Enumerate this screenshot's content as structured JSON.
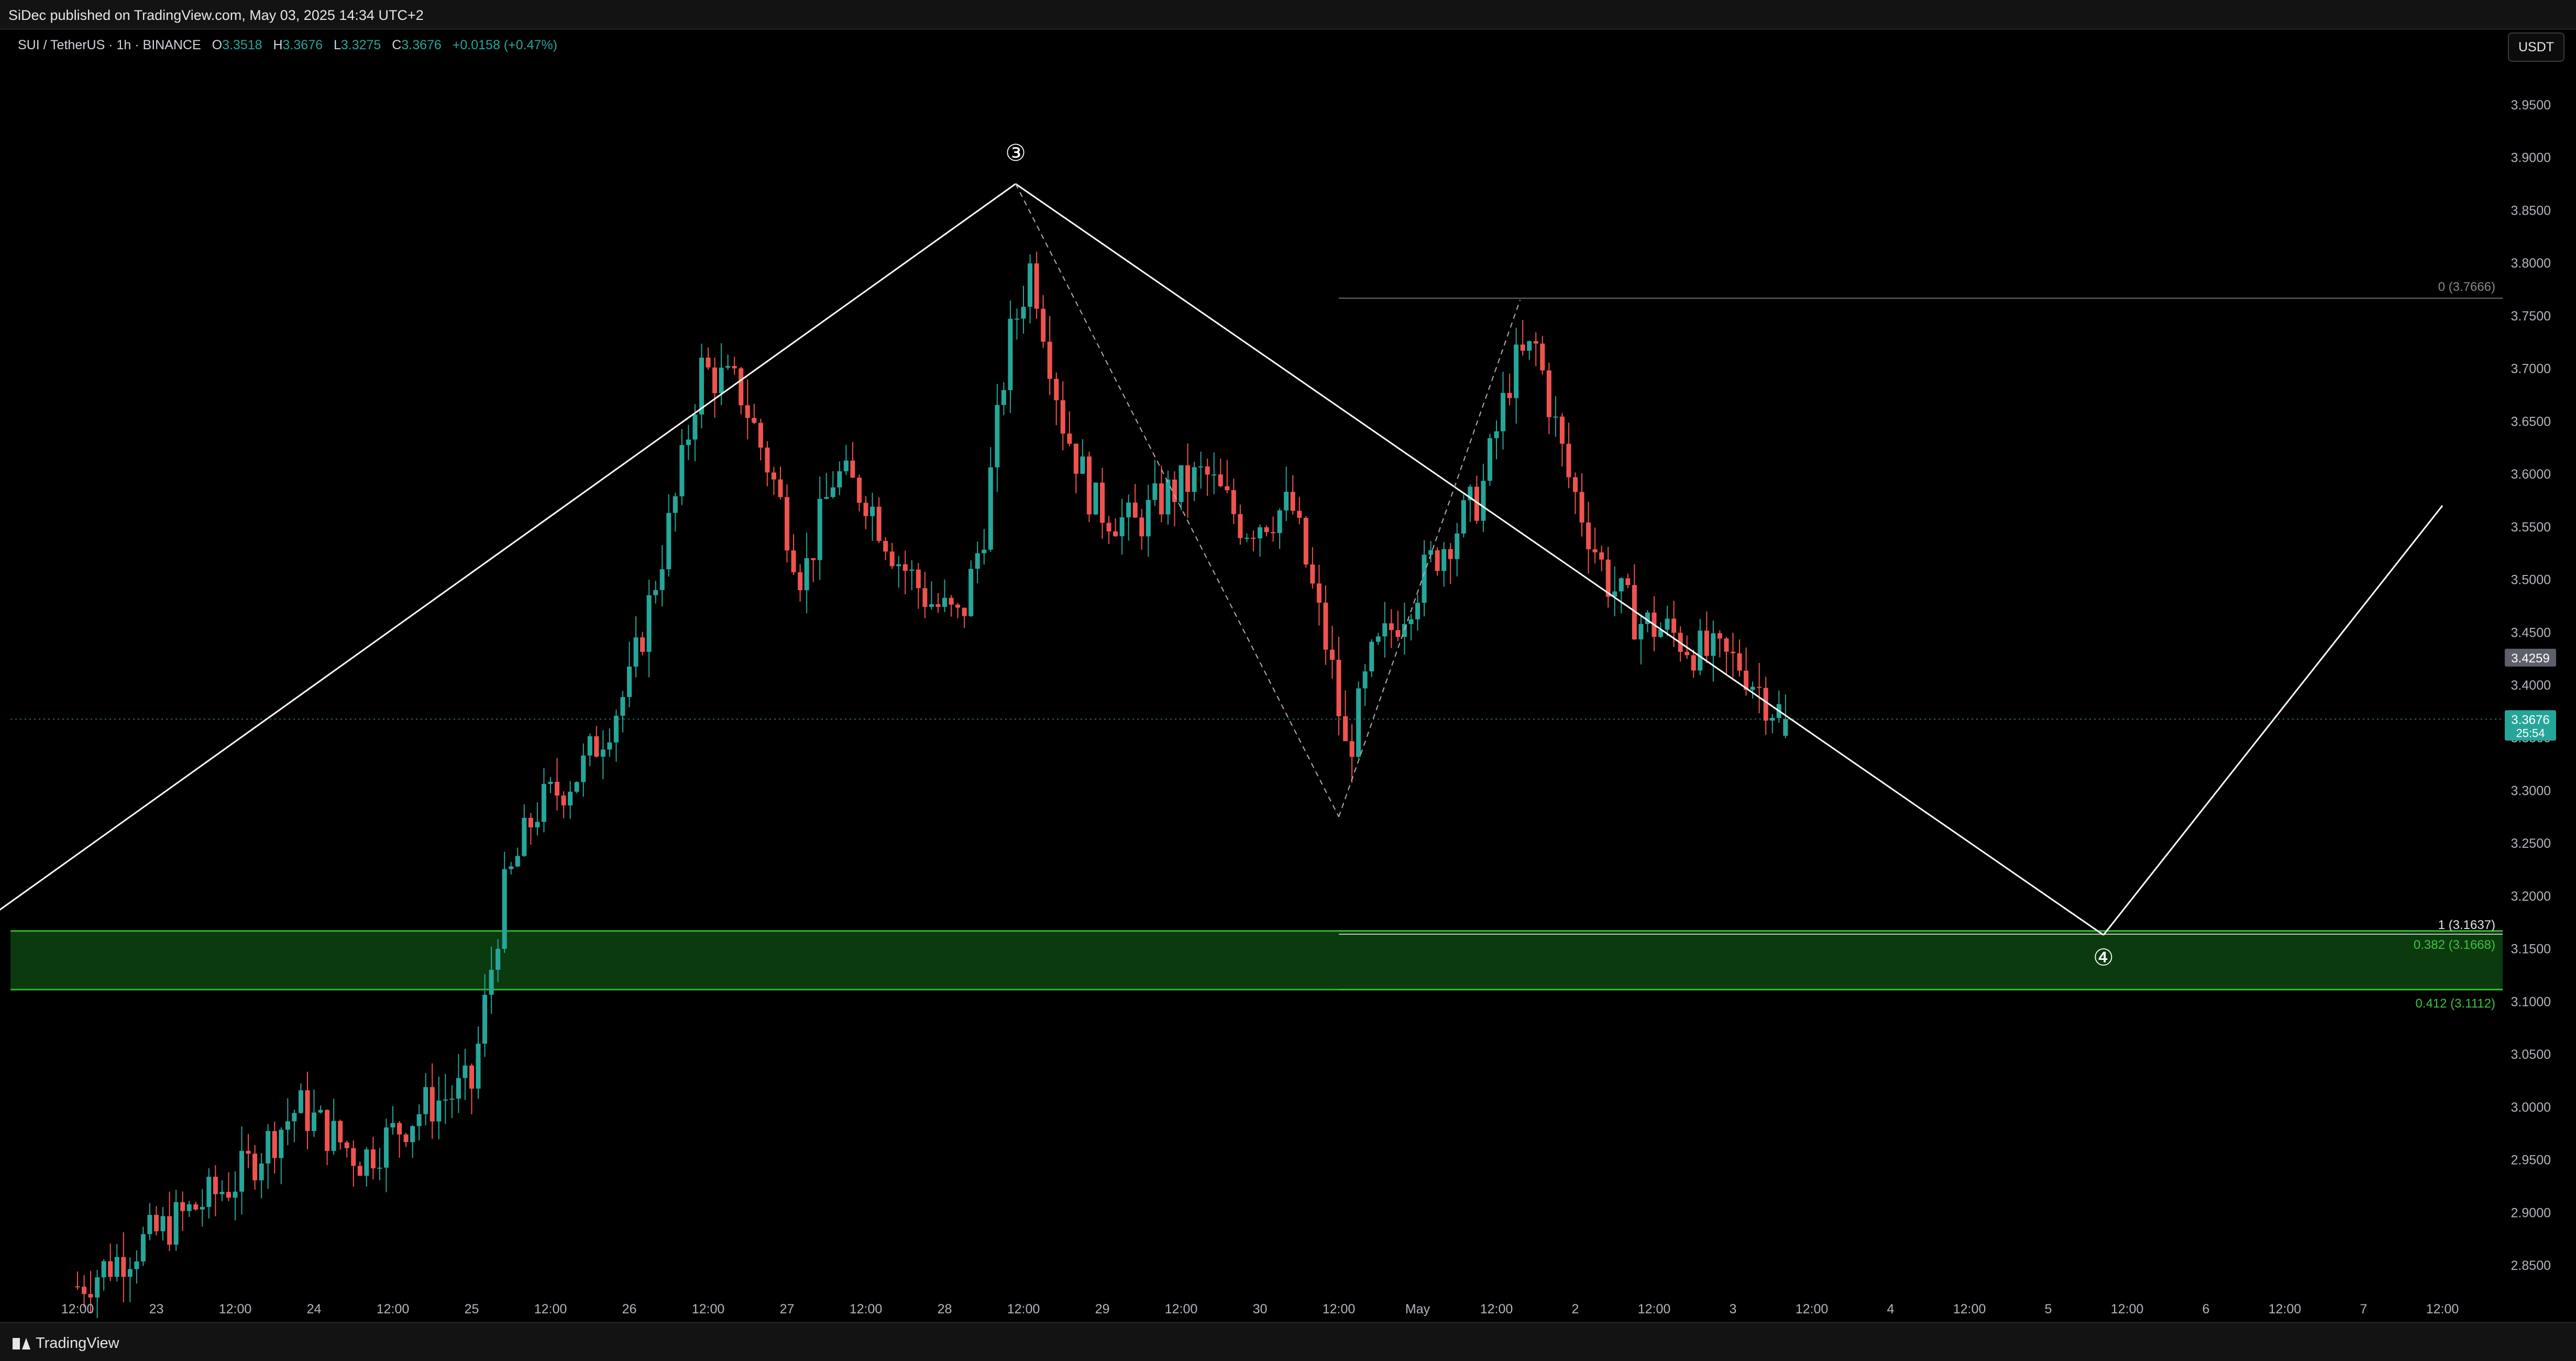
{
  "header": {
    "published": "SiDec published on TradingView.com, May 03, 2025 14:34 UTC+2"
  },
  "legend": {
    "symbol": "SUI / TetherUS · 1h · BINANCE",
    "open_label": "O",
    "open": "3.3518",
    "high_label": "H",
    "high": "3.3676",
    "low_label": "L",
    "low": "3.3275",
    "close_label": "C",
    "close": "3.3676",
    "change": "+0.0158 (+0.47%)"
  },
  "currency": "USDT",
  "footer": {
    "brand": "TradingView"
  },
  "colors": {
    "up": "#26a69a",
    "down": "#ef5350",
    "zone_fill": "#0b3a0e",
    "zone_line": "#2db52d",
    "line": "#ffffff"
  },
  "chart_data": {
    "type": "candlestick",
    "ylim": [
      2.81,
      4.0
    ],
    "y_ticks": [
      "3.9500",
      "3.9000",
      "3.8500",
      "3.8000",
      "3.7500",
      "3.7000",
      "3.6500",
      "3.6000",
      "3.5500",
      "3.5000",
      "3.4500",
      "3.4000",
      "3.3500",
      "3.3000",
      "3.2500",
      "3.2000",
      "3.1500",
      "3.1000",
      "3.0500",
      "3.0000",
      "2.9500",
      "2.9000",
      "2.8500"
    ],
    "x_ticks": [
      "12:00",
      "23",
      "12:00",
      "24",
      "12:00",
      "25",
      "12:00",
      "26",
      "12:00",
      "27",
      "12:00",
      "28",
      "12:00",
      "29",
      "12:00",
      "30",
      "12:00",
      "May",
      "12:00",
      "2",
      "12:00",
      "3",
      "12:00",
      "4",
      "12:00",
      "5",
      "12:00",
      "6",
      "12:00",
      "7",
      "12:00"
    ],
    "price_labels": [
      {
        "value": 3.4259,
        "text": "3.4259",
        "color": "#5d606b"
      },
      {
        "value": 3.3676,
        "text": "3.3676",
        "sub": "25:54",
        "color": "#26a69a"
      }
    ],
    "fib_levels": [
      {
        "value": 3.7666,
        "label": "0 (3.7666)",
        "color": "#8a8a8a"
      },
      {
        "value": 3.1637,
        "label": "1 (3.1637)",
        "color": "#e6e6e6"
      },
      {
        "value": 3.1668,
        "label": "0.382 (3.1668)",
        "color": "#3ec43e"
      },
      {
        "value": 3.1112,
        "label": "0.412 (3.1112)",
        "color": "#3ec43e"
      }
    ],
    "zone": {
      "top": 3.1668,
      "bottom": 3.1112
    },
    "wave_labels": [
      "③",
      "④"
    ],
    "wave_points": [
      {
        "t": -3.6,
        "p": 2.855
      },
      {
        "t": 5.95,
        "p": 3.875
      },
      {
        "t": 12.85,
        "p": 3.163
      }
    ],
    "projection": [
      {
        "t": 12.85,
        "p": 3.163
      },
      {
        "t": 15.0,
        "p": 3.57
      }
    ],
    "dashed_fib": [
      {
        "t": 5.95,
        "p": 3.875
      },
      {
        "t": 8.0,
        "p": 3.275
      },
      {
        "t": 9.15,
        "p": 3.765
      }
    ],
    "candles_anchor": [
      [
        0,
        2.83
      ],
      [
        0.5,
        2.88
      ],
      [
        1.0,
        2.93
      ],
      [
        1.4,
        3.0
      ],
      [
        1.8,
        2.95
      ],
      [
        2.2,
        3.0
      ],
      [
        2.5,
        3.02
      ],
      [
        2.7,
        3.2
      ],
      [
        2.9,
        3.28
      ],
      [
        3.2,
        3.32
      ],
      [
        3.5,
        3.4
      ],
      [
        3.8,
        3.58
      ],
      [
        3.95,
        3.7
      ],
      [
        4.2,
        3.68
      ],
      [
        4.4,
        3.6
      ],
      [
        4.6,
        3.5
      ],
      [
        4.8,
        3.6
      ],
      [
        5.0,
        3.58
      ],
      [
        5.2,
        3.52
      ],
      [
        5.4,
        3.48
      ],
      [
        5.6,
        3.46
      ],
      [
        5.75,
        3.55
      ],
      [
        5.9,
        3.72
      ],
      [
        6.05,
        3.8
      ],
      [
        6.25,
        3.65
      ],
      [
        6.45,
        3.57
      ],
      [
        6.7,
        3.55
      ],
      [
        6.9,
        3.58
      ],
      [
        7.15,
        3.6
      ],
      [
        7.4,
        3.55
      ],
      [
        7.7,
        3.57
      ],
      [
        7.95,
        3.42
      ],
      [
        8.05,
        3.33
      ],
      [
        8.2,
        3.42
      ],
      [
        8.4,
        3.47
      ],
      [
        8.6,
        3.52
      ],
      [
        8.9,
        3.58
      ],
      [
        9.1,
        3.7
      ],
      [
        9.25,
        3.72
      ],
      [
        9.45,
        3.6
      ],
      [
        9.7,
        3.5
      ],
      [
        9.9,
        3.46
      ],
      [
        10.1,
        3.45
      ],
      [
        10.3,
        3.43
      ],
      [
        10.55,
        3.42
      ],
      [
        10.75,
        3.38
      ],
      [
        10.85,
        3.3676
      ]
    ],
    "seed": 7
  }
}
